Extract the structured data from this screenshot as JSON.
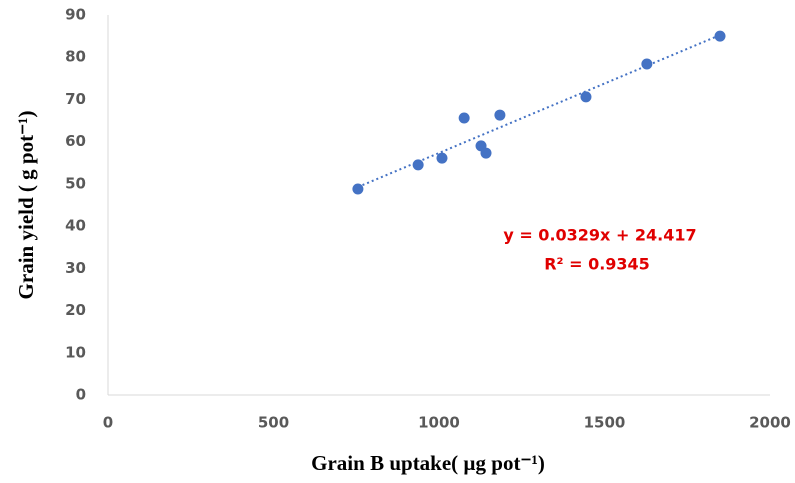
{
  "chart_data": {
    "type": "scatter",
    "xlabel": "Grain B uptake( µg pot⁻¹)",
    "ylabel": "Grain yield ( g pot⁻¹)",
    "x": [
      755,
      937,
      1009,
      1076,
      1127,
      1142,
      1184,
      1444,
      1628,
      1849
    ],
    "values": [
      48.8,
      54.5,
      56.1,
      65.6,
      59.0,
      57.3,
      66.3,
      70.6,
      78.4,
      85.0
    ],
    "color": "#4472c4",
    "xlim": [
      0,
      2000
    ],
    "xticks": [
      0,
      500,
      1000,
      1500,
      2000
    ],
    "ylim": [
      0,
      90
    ],
    "yticks": [
      0,
      10,
      20,
      30,
      40,
      50,
      60,
      70,
      80,
      90
    ],
    "grid": false,
    "trendline": {
      "slope": 0.0329,
      "intercept": 24.417,
      "equation": "y = 0.0329x + 24.417",
      "r_squared": "R² = 0.9345",
      "color": "#e00000"
    }
  }
}
